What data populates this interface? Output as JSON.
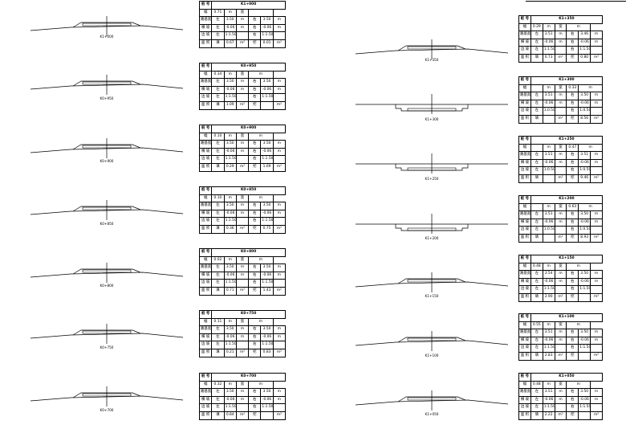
{
  "sections": [
    {
      "station": "K1+000",
      "table": [
        [
          "桩 号",
          "K1+000"
        ],
        [
          "幅",
          "0.71",
          "m",
          "宽",
          ""
        ],
        [
          "路基宽",
          "左",
          "3.50",
          "m",
          "右",
          "3.50",
          "m"
        ],
        [
          "横 坡",
          "左",
          "-0.06",
          "m",
          "右",
          "-0.06",
          "m"
        ],
        [
          "边 坡",
          "左",
          "1:1.50",
          "",
          "右",
          "1:1.50",
          ""
        ],
        [
          "面 积",
          "填",
          "0.67",
          "m²",
          "挖",
          "0.01",
          "m²"
        ]
      ]
    },
    {
      "station": "K0+950",
      "table": [
        [
          "桩 号",
          "K0+950"
        ],
        [
          "幅",
          "0.34",
          "m",
          "宽",
          "m"
        ],
        [
          "路基宽",
          "左",
          "3.50",
          "m",
          "右",
          "3.50",
          "m"
        ],
        [
          "横 坡",
          "左",
          "-0.06",
          "m",
          "右",
          "-0.06",
          "m"
        ],
        [
          "边 坡",
          "左",
          "1:1.50",
          "",
          "右",
          "1:1.50",
          ""
        ],
        [
          "面 积",
          "填",
          "1.09",
          "m²",
          "挖",
          "",
          "m²"
        ]
      ]
    },
    {
      "station": "K0+900",
      "table": [
        [
          "桩 号",
          "K0+900"
        ],
        [
          "幅",
          "0.10",
          "m",
          "宽",
          "m"
        ],
        [
          "路基宽",
          "左",
          "3.50",
          "m",
          "右",
          "3.50",
          "m"
        ],
        [
          "横 坡",
          "左",
          "-0.06",
          "m",
          "右",
          "-0.06",
          "m"
        ],
        [
          "边 坡",
          "左",
          "1:1.50",
          "",
          "右",
          "1:1.50",
          ""
        ],
        [
          "面 积",
          "填",
          "0.29",
          "m²",
          "挖",
          "1.69",
          "m²"
        ]
      ]
    },
    {
      "station": "K0+850",
      "table": [
        [
          "桩 号",
          "K0+850"
        ],
        [
          "幅",
          "0.10",
          "m",
          "宽",
          "m"
        ],
        [
          "路基宽",
          "左",
          "3.50",
          "m",
          "右",
          "3.50",
          "m"
        ],
        [
          "横 坡",
          "左",
          "-0.06",
          "m",
          "右",
          "-0.06",
          "m"
        ],
        [
          "边 坡",
          "左",
          "1:1.50",
          "",
          "右",
          "1:1.50",
          ""
        ],
        [
          "面 积",
          "填",
          "0.36",
          "m²",
          "挖",
          "0.75",
          "m²"
        ]
      ]
    },
    {
      "station": "K0+800",
      "table": [
        [
          "桩 号",
          "K0+800"
        ],
        [
          "幅",
          "0.02",
          "m",
          "宽",
          "m"
        ],
        [
          "路基宽",
          "左",
          "3.50",
          "m",
          "右",
          "3.50",
          "m"
        ],
        [
          "横 坡",
          "左",
          "-0.06",
          "m",
          "右",
          "-0.06",
          "m"
        ],
        [
          "边 坡",
          "左",
          "1:1.50",
          "",
          "右",
          "1:1.50",
          ""
        ],
        [
          "面 积",
          "填",
          "0.71",
          "m²",
          "挖",
          "1.43",
          "m²"
        ]
      ]
    },
    {
      "station": "K0+750",
      "table": [
        [
          "桩 号",
          "K0+750"
        ],
        [
          "幅",
          "0.11",
          "m",
          "宽",
          "m"
        ],
        [
          "路基宽",
          "左",
          "3.50",
          "m",
          "右",
          "3.50",
          "m"
        ],
        [
          "横 坡",
          "左",
          "-0.06",
          "m",
          "右",
          "-0.06",
          "m"
        ],
        [
          "边 坡",
          "左",
          "1:1.50",
          "",
          "右",
          "1:1.50",
          ""
        ],
        [
          "面 积",
          "填",
          "0.21",
          "m²",
          "挖",
          "0.83",
          "m²"
        ]
      ]
    },
    {
      "station": "K0+700",
      "table": [
        [
          "桩 号",
          "K0+700"
        ],
        [
          "幅",
          "0.32",
          "m",
          "宽",
          "m"
        ],
        [
          "路基宽",
          "左",
          "3.50",
          "m",
          "右",
          "3.50",
          "m"
        ],
        [
          "横 坡",
          "左",
          "-0.06",
          "m",
          "右",
          "-0.06",
          "m"
        ],
        [
          "边 坡",
          "左",
          "1:1.50",
          "",
          "右",
          "1:1.50",
          ""
        ],
        [
          "面 积",
          "填",
          "0.84",
          "m²",
          "挖",
          "",
          "m²"
        ]
      ]
    },
    {
      "station": "K1+350",
      "table": [
        [
          "桩 号",
          "K1+350"
        ],
        [
          "幅",
          "0.29",
          "m",
          "宽",
          "m"
        ],
        [
          "路基宽",
          "左",
          "3.51",
          "m",
          "右",
          "3.46",
          "m"
        ],
        [
          "横 坡",
          "左",
          "-0.06",
          "m",
          "右",
          "-0.06",
          "m"
        ],
        [
          "边 坡",
          "左",
          "1:1.50",
          "",
          "右",
          "1:1.50",
          ""
        ],
        [
          "面 积",
          "填",
          "0.73",
          "m²",
          "挖",
          "0.80",
          "m²"
        ]
      ]
    },
    {
      "station": "K1+300",
      "table": [
        [
          "桩 号",
          "K1+300"
        ],
        [
          "幅",
          "",
          "m",
          "宽",
          "0.33",
          "m"
        ],
        [
          "路基宽",
          "左",
          "3.51",
          "m",
          "右",
          "3.50",
          "m"
        ],
        [
          "横 坡",
          "左",
          "-0.06",
          "m",
          "右",
          "-0.06",
          "m"
        ],
        [
          "边 坡",
          "左",
          "1:0.50",
          "",
          "右",
          "1:0.50",
          ""
        ],
        [
          "面 积",
          "填",
          "",
          "m²",
          "挖",
          "8.56",
          "m²"
        ]
      ]
    },
    {
      "station": "K1+250",
      "table": [
        [
          "桩 号",
          "K1+250"
        ],
        [
          "幅",
          "",
          "m",
          "宽",
          "0.47",
          "m"
        ],
        [
          "路基宽",
          "左",
          "3.51",
          "m",
          "右",
          "3.51",
          "m"
        ],
        [
          "横 坡",
          "左",
          "-0.06",
          "m",
          "右",
          "-0.06",
          "m"
        ],
        [
          "边 坡",
          "左",
          "1:0.50",
          "",
          "右",
          "1:0.50",
          ""
        ],
        [
          "面 积",
          "填",
          "",
          "m²",
          "挖",
          "9.46",
          "m²"
        ]
      ]
    },
    {
      "station": "K1+200",
      "table": [
        [
          "桩 号",
          "K1+200"
        ],
        [
          "幅",
          "",
          "m",
          "宽",
          "0.63",
          "m"
        ],
        [
          "路基宽",
          "左",
          "3.51",
          "m",
          "右",
          "3.50",
          "m"
        ],
        [
          "横 坡",
          "左",
          "-0.06",
          "m",
          "右",
          "-0.06",
          "m"
        ],
        [
          "边 坡",
          "左",
          "1:0.50",
          "",
          "右",
          "1:0.50",
          ""
        ],
        [
          "面 积",
          "填",
          "",
          "m²",
          "挖",
          "8.93",
          "m²"
        ]
      ]
    },
    {
      "station": "K1+150",
      "table": [
        [
          "桩 号",
          "K1+150"
        ],
        [
          "幅",
          "0.48",
          "m",
          "宽",
          "m"
        ],
        [
          "路基宽",
          "左",
          "3.54",
          "m",
          "右",
          "3.50",
          "m"
        ],
        [
          "横 坡",
          "左",
          "-0.06",
          "m",
          "右",
          "-0.06",
          "m"
        ],
        [
          "边 坡",
          "左",
          "1:1.50",
          "",
          "右",
          "1:1.50",
          ""
        ],
        [
          "面 积",
          "填",
          "2.90",
          "m²",
          "挖",
          "",
          "m²"
        ]
      ]
    },
    {
      "station": "K1+100",
      "table": [
        [
          "桩 号",
          "K1+100"
        ],
        [
          "幅",
          "0.55",
          "m",
          "宽",
          "m"
        ],
        [
          "路基宽",
          "左",
          "3.51",
          "m",
          "右",
          "3.50",
          "m"
        ],
        [
          "横 坡",
          "左",
          "-0.06",
          "m",
          "右",
          "-0.06",
          "m"
        ],
        [
          "边 坡",
          "左",
          "1:1.50",
          "",
          "右",
          "1:1.50",
          ""
        ],
        [
          "面 积",
          "填",
          "2.83",
          "m²",
          "挖",
          "",
          "m²"
        ]
      ]
    },
    {
      "station": "K1+050",
      "table": [
        [
          "桩 号",
          "K1+050"
        ],
        [
          "幅",
          "0.48",
          "m",
          "宽",
          "m"
        ],
        [
          "路基宽",
          "左",
          "3.51",
          "m",
          "右",
          "3.50",
          "m"
        ],
        [
          "横 坡",
          "左",
          "-0.06",
          "m",
          "右",
          "-0.06",
          "m"
        ],
        [
          "边 坡",
          "左",
          "1:1.50",
          "",
          "右",
          "1:1.50",
          ""
        ],
        [
          "面 积",
          "填",
          "2.22",
          "m²",
          "挖",
          "",
          "m²"
        ]
      ]
    }
  ]
}
